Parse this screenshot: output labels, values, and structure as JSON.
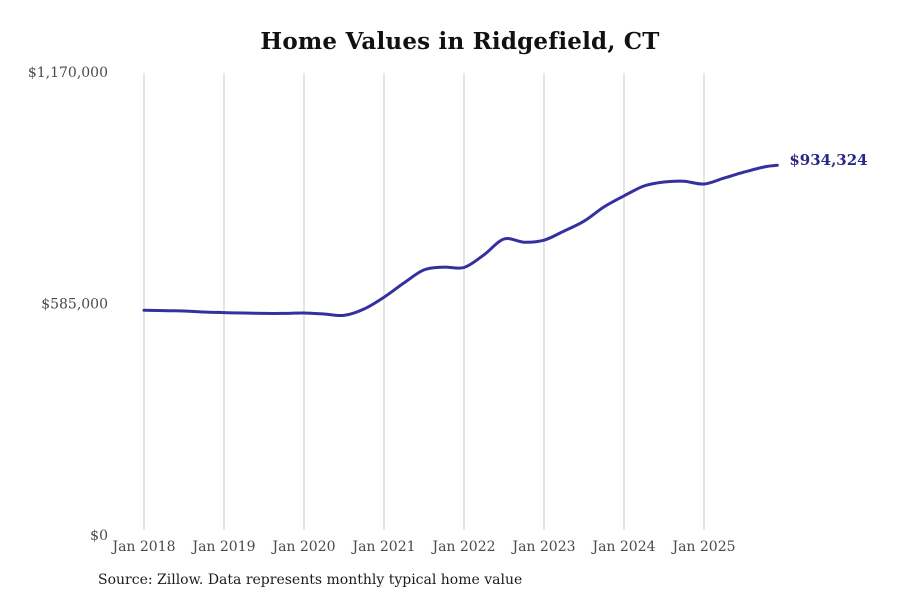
{
  "chart_data": {
    "type": "line",
    "title": "Home Values in Ridgefield, CT",
    "source_note": "Source: Zillow. Data represents monthly typical home value",
    "end_label": "$934,324",
    "latest_value": 934324,
    "xlabel": "",
    "ylabel": "",
    "ylim": [
      0,
      1170000
    ],
    "grid": "vertical-only",
    "legend": "none",
    "colors": {
      "line": "#36309f",
      "end_label": "#2b2786",
      "gridline": "#c9c9c9",
      "tick_text": "#4a4a4a",
      "title_text": "#111111",
      "source_text": "#1c1c1c"
    },
    "x_tick_labels": [
      "Jan 2018",
      "Jan 2019",
      "Jan 2020",
      "Jan 2021",
      "Jan 2022",
      "Jan 2023",
      "Jan 2024",
      "Jan 2025"
    ],
    "y_ticks": [
      {
        "label": "$0",
        "value": 0
      },
      {
        "label": "$585,000",
        "value": 585000
      },
      {
        "label": "$1,170,000",
        "value": 1170000
      }
    ],
    "series": [
      {
        "name": "Typical home value",
        "points": [
          {
            "month": "Jan 2018",
            "value": 568000
          },
          {
            "month": "Apr 2018",
            "value": 567000
          },
          {
            "month": "Jul 2018",
            "value": 566000
          },
          {
            "month": "Oct 2018",
            "value": 563500
          },
          {
            "month": "Jan 2019",
            "value": 562000
          },
          {
            "month": "Apr 2019",
            "value": 561000
          },
          {
            "month": "Jul 2019",
            "value": 560000
          },
          {
            "month": "Oct 2019",
            "value": 560000
          },
          {
            "month": "Jan 2020",
            "value": 561000
          },
          {
            "month": "Apr 2020",
            "value": 558500
          },
          {
            "month": "Jul 2020",
            "value": 555000
          },
          {
            "month": "Oct 2020",
            "value": 571000
          },
          {
            "month": "Jan 2021",
            "value": 601000
          },
          {
            "month": "Apr 2021",
            "value": 637000
          },
          {
            "month": "Jul 2021",
            "value": 670000
          },
          {
            "month": "Oct 2021",
            "value": 677000
          },
          {
            "month": "Jan 2022",
            "value": 676000
          },
          {
            "month": "Apr 2022",
            "value": 708000
          },
          {
            "month": "Jul 2022",
            "value": 748000
          },
          {
            "month": "Oct 2022",
            "value": 740000
          },
          {
            "month": "Jan 2023",
            "value": 745000
          },
          {
            "month": "Apr 2023",
            "value": 768000
          },
          {
            "month": "Jul 2023",
            "value": 793000
          },
          {
            "month": "Oct 2023",
            "value": 829000
          },
          {
            "month": "Jan 2024",
            "value": 857000
          },
          {
            "month": "Apr 2024",
            "value": 882000
          },
          {
            "month": "Jul 2024",
            "value": 892000
          },
          {
            "month": "Oct 2024",
            "value": 894000
          },
          {
            "month": "Jan 2025",
            "value": 887000
          },
          {
            "month": "Apr 2025",
            "value": 902000
          },
          {
            "month": "Jul 2025",
            "value": 917000
          },
          {
            "month": "Oct 2025",
            "value": 930000
          },
          {
            "month": "Dec 2025",
            "value": 934324
          }
        ]
      }
    ]
  }
}
